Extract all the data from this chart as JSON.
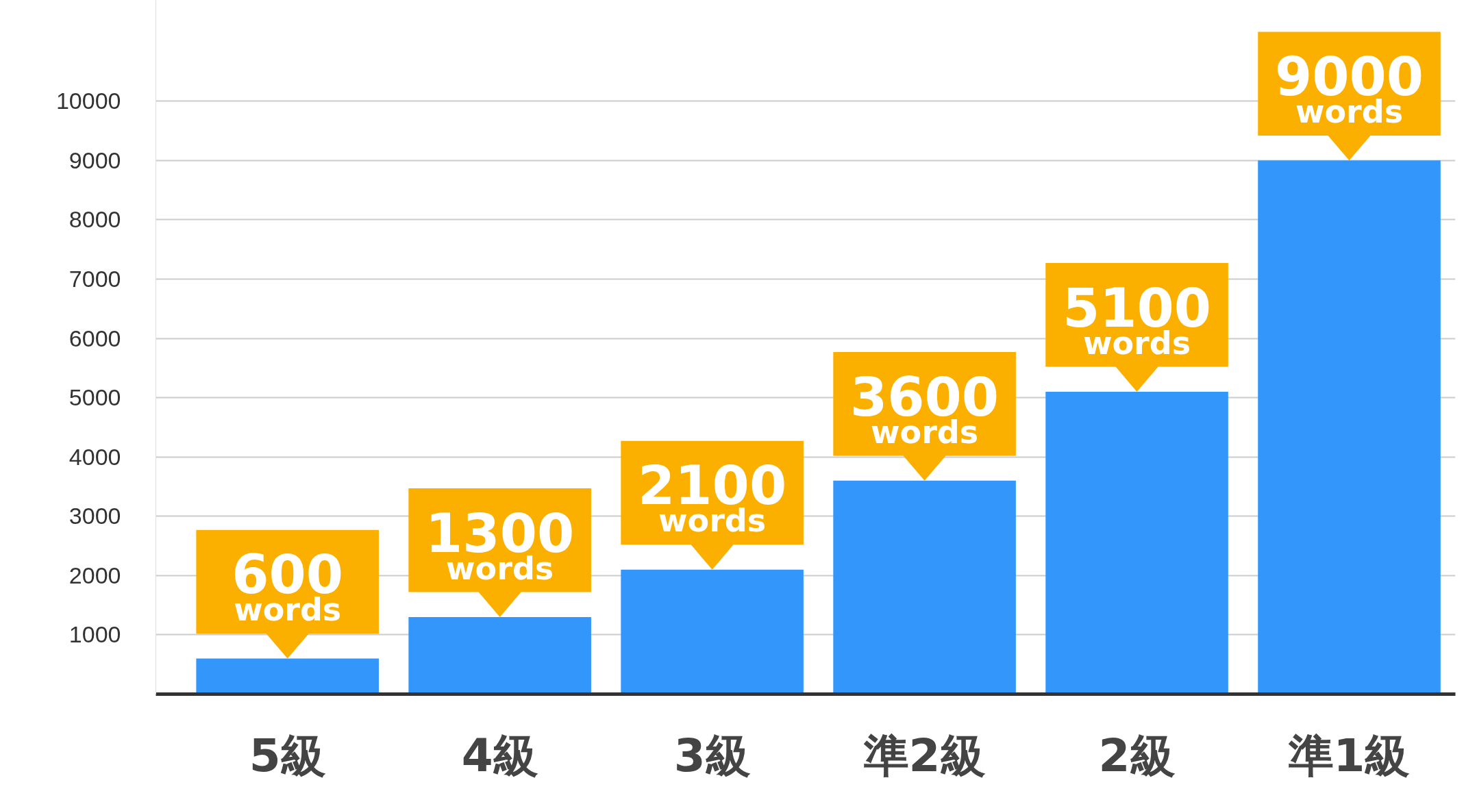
{
  "chart_data": {
    "type": "bar",
    "categories": [
      "5級",
      "4級",
      "3級",
      "準2級",
      "2級",
      "準1級"
    ],
    "values": [
      600,
      1300,
      2100,
      3600,
      5100,
      9000
    ],
    "value_labels": [
      "600\nwords",
      "1300\nwords",
      "2100\nwords",
      "3600\nwords",
      "5100\nwords",
      "9000\nwords"
    ],
    "color": "#3396fb",
    "ylim": [
      0,
      11700
    ],
    "yticks": [
      1000,
      2000,
      3000,
      4000,
      5000,
      6000,
      7000,
      8000,
      9000,
      10000
    ],
    "grid": "y"
  }
}
